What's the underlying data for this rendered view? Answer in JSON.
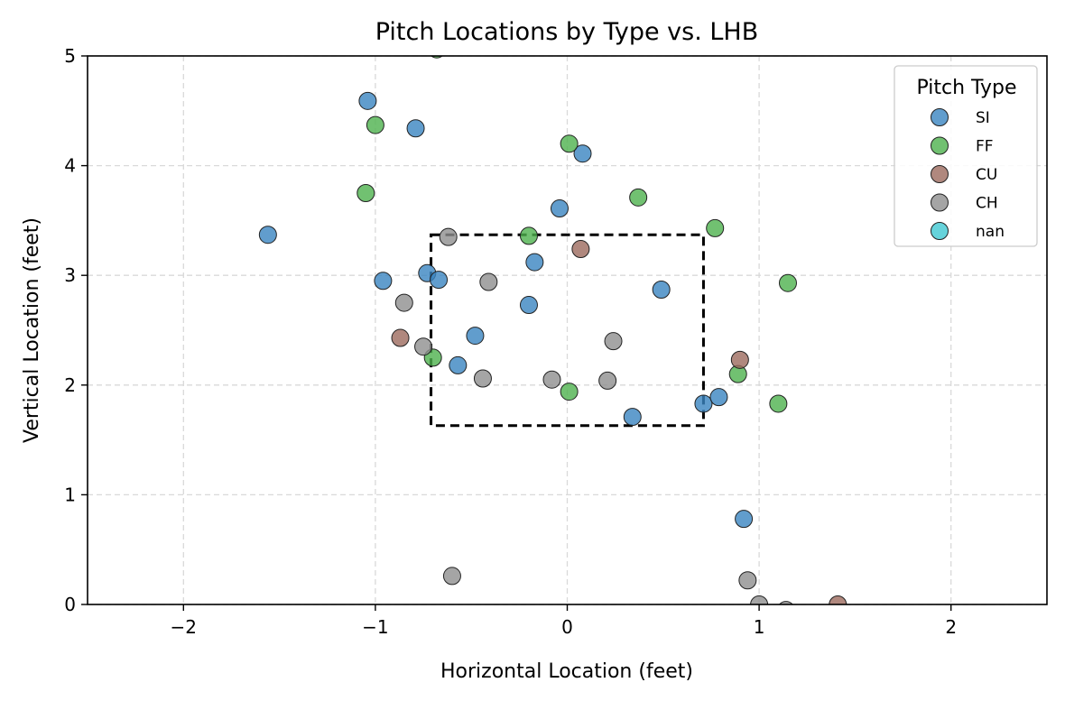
{
  "chart_data": {
    "type": "scatter",
    "title": "Pitch Locations by Type vs. LHB",
    "xlabel": "Horizontal Location (feet)",
    "ylabel": "Vertical Location (feet)",
    "xlim": [
      -2.5,
      2.5
    ],
    "ylim": [
      0,
      5
    ],
    "xticks": [
      -2,
      -1,
      0,
      1,
      2
    ],
    "xtick_labels": [
      "−2",
      "−1",
      "0",
      "1",
      "2"
    ],
    "yticks": [
      0,
      1,
      2,
      3,
      4,
      5
    ],
    "ytick_labels": [
      "0",
      "1",
      "2",
      "3",
      "4",
      "5"
    ],
    "grid": true,
    "legend": {
      "title": "Pitch Type",
      "placement": "top-right"
    },
    "strike_zone": {
      "x": [
        -0.71,
        0.71
      ],
      "y": [
        1.63,
        3.37
      ]
    },
    "series": [
      {
        "name": "SI",
        "color": "#3a84c0",
        "points": [
          [
            -1.04,
            4.59
          ],
          [
            -0.79,
            4.34
          ],
          [
            0.08,
            4.11
          ],
          [
            -1.56,
            3.37
          ],
          [
            -0.04,
            3.61
          ],
          [
            -0.17,
            3.12
          ],
          [
            -0.73,
            3.02
          ],
          [
            -0.67,
            2.96
          ],
          [
            -0.96,
            2.95
          ],
          [
            0.49,
            2.87
          ],
          [
            -0.2,
            2.73
          ],
          [
            -0.48,
            2.45
          ],
          [
            -0.57,
            2.18
          ],
          [
            0.71,
            1.83
          ],
          [
            0.79,
            1.89
          ],
          [
            0.34,
            1.71
          ],
          [
            0.92,
            0.78
          ]
        ]
      },
      {
        "name": "FF",
        "color": "#4eb14e",
        "points": [
          [
            -0.68,
            5.06
          ],
          [
            -1.0,
            4.37
          ],
          [
            0.01,
            4.2
          ],
          [
            -1.05,
            3.75
          ],
          [
            0.37,
            3.71
          ],
          [
            0.77,
            3.43
          ],
          [
            -0.2,
            3.36
          ],
          [
            1.15,
            2.93
          ],
          [
            -0.7,
            2.25
          ],
          [
            0.89,
            2.1
          ],
          [
            0.01,
            1.94
          ],
          [
            1.1,
            1.83
          ]
        ]
      },
      {
        "name": "CU",
        "color": "#9c6a5e",
        "points": [
          [
            0.07,
            3.24
          ],
          [
            -0.87,
            2.43
          ],
          [
            0.9,
            2.23
          ],
          [
            1.41,
            0.0
          ]
        ]
      },
      {
        "name": "CH",
        "color": "#8f8f8f",
        "points": [
          [
            -0.62,
            3.35
          ],
          [
            -0.41,
            2.94
          ],
          [
            -0.85,
            2.75
          ],
          [
            -0.75,
            2.35
          ],
          [
            0.24,
            2.4
          ],
          [
            -0.44,
            2.06
          ],
          [
            -0.08,
            2.05
          ],
          [
            0.21,
            2.04
          ],
          [
            -0.6,
            0.26
          ],
          [
            0.94,
            0.22
          ],
          [
            1.0,
            0.0
          ],
          [
            1.14,
            -0.05
          ]
        ]
      },
      {
        "name": "nan",
        "color": "#40c8d2",
        "points": []
      }
    ]
  }
}
